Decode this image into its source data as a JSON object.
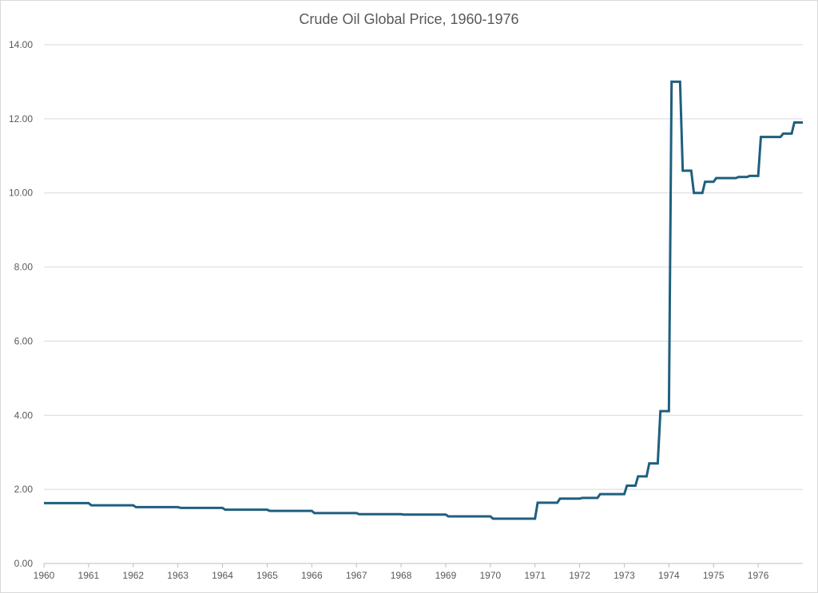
{
  "chart_data": {
    "type": "line",
    "title": "Crude Oil Global Price, 1960-1976",
    "xlabel": "",
    "ylabel": "",
    "xlim": [
      1960,
      1977
    ],
    "ylim": [
      0,
      14
    ],
    "y_ticks": [
      "0.00",
      "2.00",
      "4.00",
      "6.00",
      "8.00",
      "10.00",
      "12.00",
      "14.00"
    ],
    "x_ticks": [
      "1960",
      "1961",
      "1962",
      "1963",
      "1964",
      "1965",
      "1966",
      "1967",
      "1968",
      "1969",
      "1970",
      "1971",
      "1972",
      "1973",
      "1974",
      "1975",
      "1976"
    ],
    "grid": "horizontal",
    "legend": "none",
    "series": [
      {
        "color": "#1f5f7f",
        "step": true,
        "points": [
          [
            1960.0,
            1.63
          ],
          [
            1961.0,
            1.57
          ],
          [
            1962.0,
            1.52
          ],
          [
            1963.0,
            1.5
          ],
          [
            1964.0,
            1.45
          ],
          [
            1965.0,
            1.42
          ],
          [
            1966.0,
            1.36
          ],
          [
            1967.0,
            1.33
          ],
          [
            1968.0,
            1.32
          ],
          [
            1969.0,
            1.27
          ],
          [
            1970.0,
            1.21
          ],
          [
            1971.0,
            1.64
          ],
          [
            1971.5,
            1.75
          ],
          [
            1972.0,
            1.77
          ],
          [
            1972.4,
            1.87
          ],
          [
            1973.0,
            2.1
          ],
          [
            1973.25,
            2.35
          ],
          [
            1973.5,
            2.7
          ],
          [
            1973.75,
            4.11
          ],
          [
            1974.0,
            13.0
          ],
          [
            1974.25,
            10.6
          ],
          [
            1974.5,
            10.0
          ],
          [
            1974.75,
            10.3
          ],
          [
            1975.0,
            10.4
          ],
          [
            1975.5,
            10.43
          ],
          [
            1975.75,
            10.46
          ],
          [
            1976.0,
            11.51
          ],
          [
            1976.5,
            11.6
          ],
          [
            1976.75,
            11.9
          ],
          [
            1976.99,
            11.9
          ]
        ]
      }
    ]
  }
}
